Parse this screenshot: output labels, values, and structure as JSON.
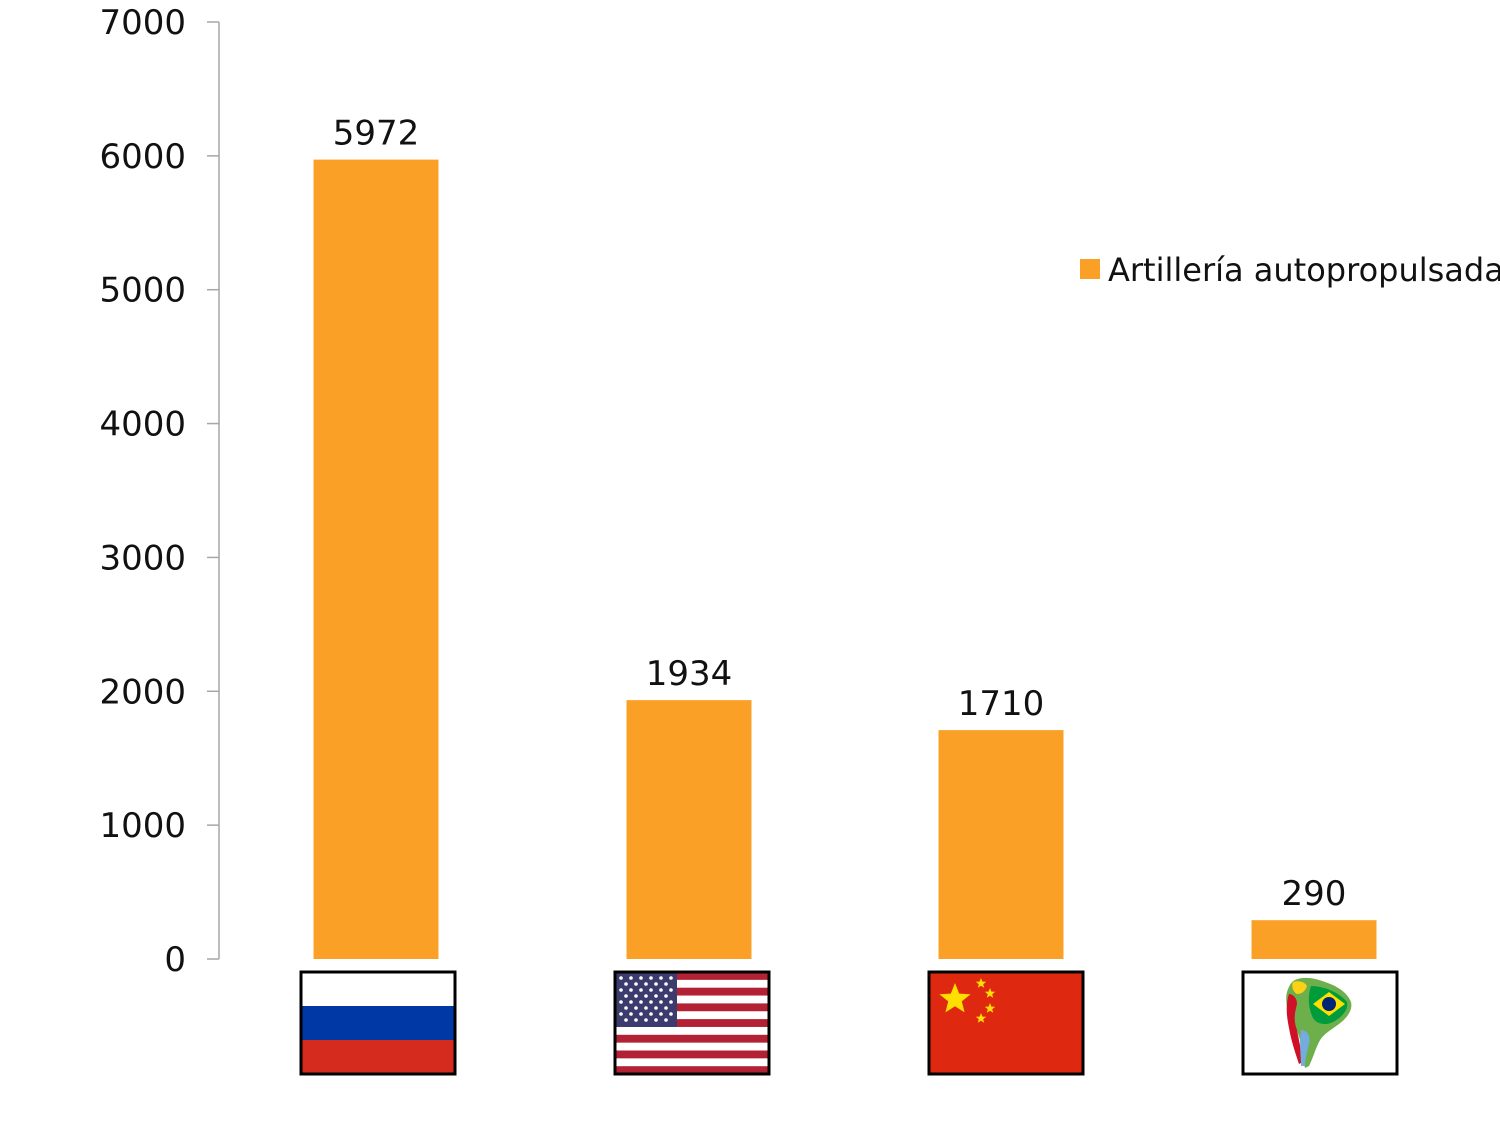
{
  "chart_data": {
    "type": "bar",
    "categories": [
      "Rusia",
      "Estados Unidos",
      "China",
      "Sudamérica"
    ],
    "category_icons": [
      "russia-flag-icon",
      "usa-flag-icon",
      "china-flag-icon",
      "south-america-map-icon"
    ],
    "series": [
      {
        "name": "Artillería autopropulsada",
        "values": [
          5972,
          1934,
          1710,
          290
        ],
        "color": "#FBA027"
      }
    ],
    "data_labels": [
      "5972",
      "1934",
      "1710",
      "290"
    ],
    "yticks": [
      "0",
      "1000",
      "2000",
      "3000",
      "4000",
      "5000",
      "6000",
      "7000"
    ],
    "ylim": [
      0,
      7000
    ],
    "grid": false,
    "legend_position": "right",
    "colors": {
      "axis": "#A6A6A6",
      "text": "#111111"
    }
  }
}
